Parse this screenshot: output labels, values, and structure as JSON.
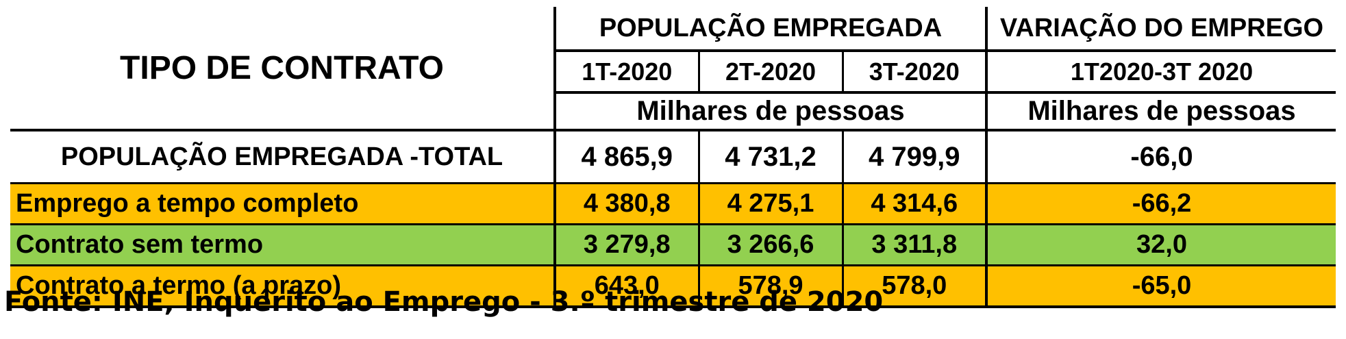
{
  "header": {
    "title": "TIPO DE CONTRATO",
    "group_employed": "POPULAÇÃO EMPREGADA",
    "group_variation": "VARIAÇÃO DO EMPREGO",
    "quarters": [
      "1T-2020",
      "2T-2020",
      "3T-2020"
    ],
    "variation_period": "1T2020-3T 2020",
    "unit_employed": "Milhares de pessoas",
    "unit_variation": "Milhares de pessoas"
  },
  "rows": [
    {
      "label": "POPULAÇÃO EMPREGADA -TOTAL",
      "q1": "4 865,9",
      "q2": "4 731,2",
      "q3": "4 799,9",
      "variation": "-66,0",
      "color": "#ffffff"
    },
    {
      "label": "Emprego a tempo completo",
      "q1": "4 380,8",
      "q2": "4 275,1",
      "q3": "4 314,6",
      "variation": "-66,2",
      "color": "#ffc000"
    },
    {
      "label": "Contrato sem termo",
      "q1": "3 279,8",
      "q2": "3 266,6",
      "q3": "3 311,8",
      "variation": "32,0",
      "color": "#92d050"
    },
    {
      "label": "Contrato a  termo (a prazo)",
      "q1": "643,0",
      "q2": "578,9",
      "q3": "578,0",
      "variation": "-65,0",
      "color": "#ffc000"
    }
  ],
  "source": "Fonte: INE, Inquérito ao Emprego - 3.º trimestre de 2020"
}
